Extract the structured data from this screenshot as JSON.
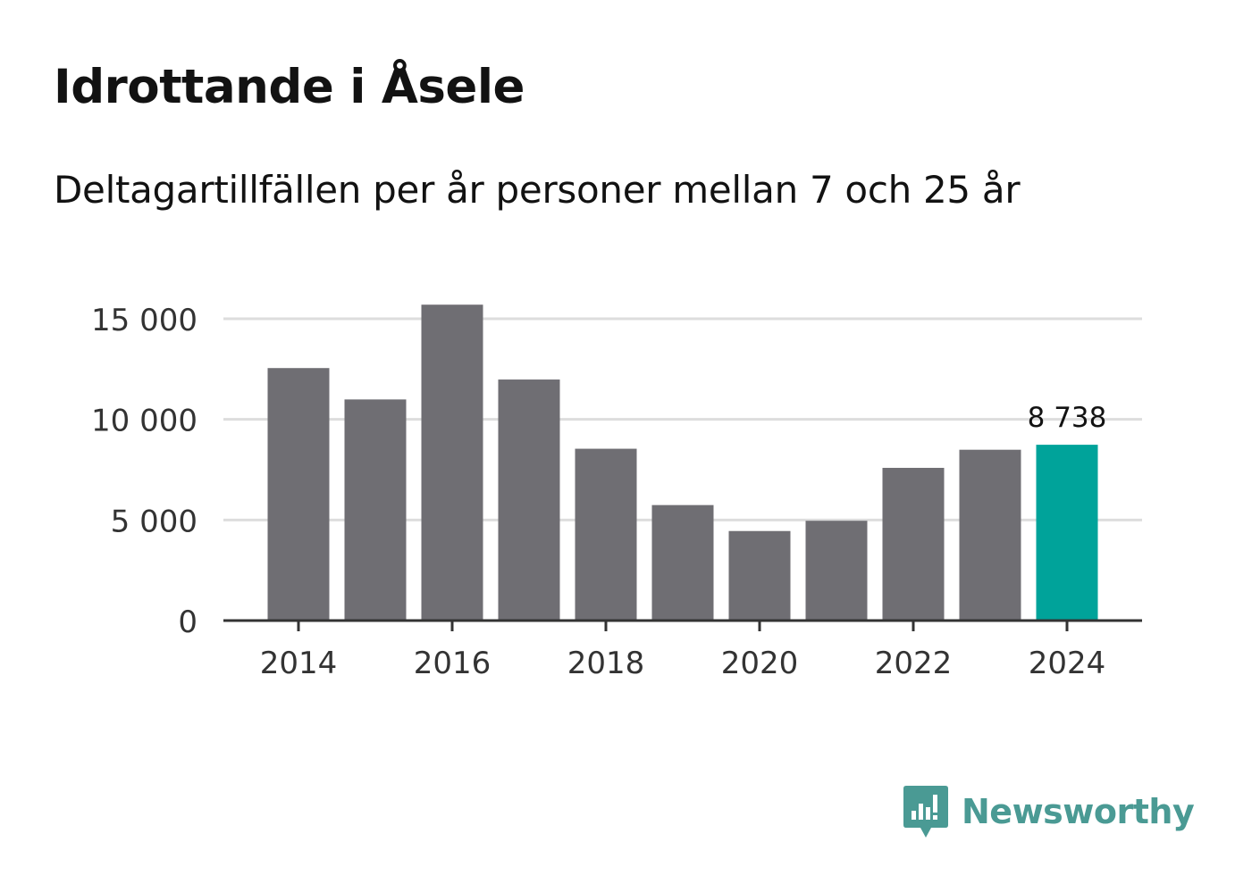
{
  "header": {
    "title": "Idrottande i Åsele",
    "subtitle": "Deltagartillfällen per år personer mellan 7 och 25 år"
  },
  "chart_data": {
    "type": "bar",
    "title": "Idrottande i Åsele",
    "subtitle": "Deltagartillfällen per år personer mellan 7 och 25 år",
    "xlabel": "",
    "ylabel": "",
    "categories": [
      "2014",
      "2015",
      "2016",
      "2017",
      "2018",
      "2019",
      "2020",
      "2021",
      "2022",
      "2023",
      "2024"
    ],
    "values": [
      12550,
      10990,
      15700,
      11980,
      8540,
      5740,
      4450,
      4960,
      7590,
      8490,
      8738
    ],
    "x_tick_labels": [
      "2014",
      "2016",
      "2018",
      "2020",
      "2022",
      "2024"
    ],
    "y_ticks": [
      0,
      5000,
      10000,
      15000
    ],
    "y_tick_labels": [
      "0",
      "5 000",
      "10 000",
      "15 000"
    ],
    "ylim": [
      0,
      15000
    ],
    "grid": true,
    "highlight": {
      "category": "2024",
      "label": "8 738"
    },
    "colors": {
      "bar": "#6f6e73",
      "highlight": "#00a39a",
      "grid": "#dddddd",
      "axis": "#333333"
    }
  },
  "brand": {
    "name": "Newsworthy",
    "icon": "newsworthy-logo-icon",
    "color": "#4a9a94"
  }
}
